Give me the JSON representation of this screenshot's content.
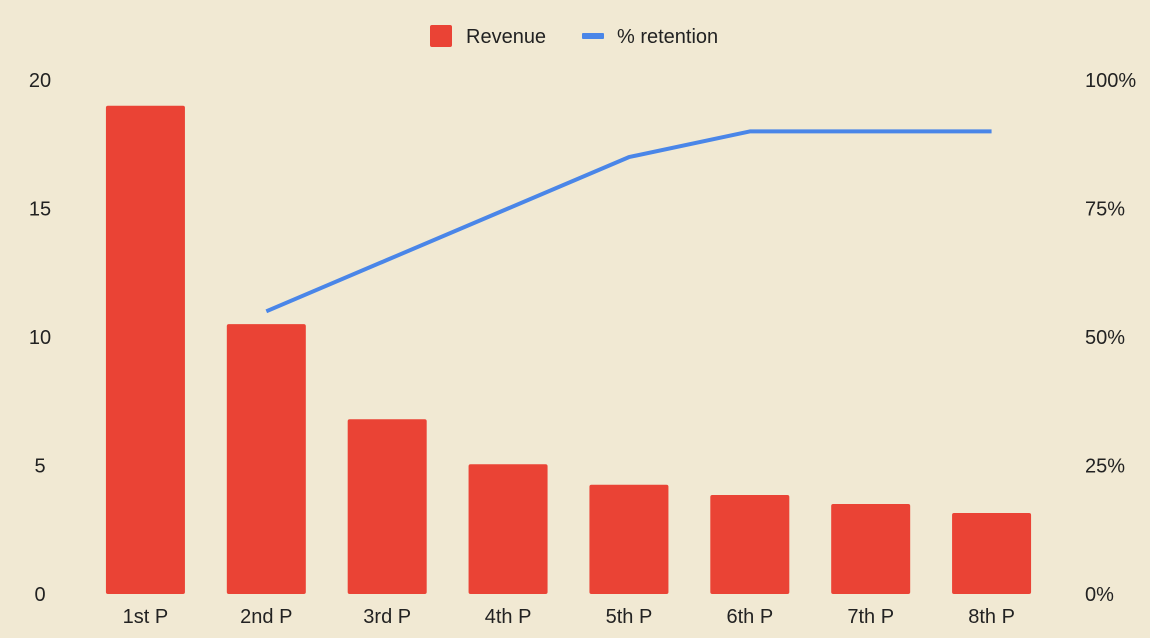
{
  "chart_data": {
    "type": "bar",
    "categories": [
      "1st P",
      "2nd P",
      "3rd P",
      "4th P",
      "5th P",
      "6th P",
      "7th P",
      "8th P"
    ],
    "series": [
      {
        "name": "Revenue",
        "type": "bar",
        "axis": "left",
        "color": "#EA4335",
        "values": [
          19,
          10.5,
          6.8,
          5.05,
          4.25,
          3.85,
          3.5,
          3.15
        ]
      },
      {
        "name": "% retention",
        "type": "line",
        "axis": "right",
        "color": "#4A86E8",
        "values": [
          null,
          55,
          65,
          75,
          85,
          90,
          90,
          90
        ]
      }
    ],
    "left_axis": {
      "ticks": [
        "0",
        "5",
        "10",
        "15",
        "20"
      ],
      "ylim": [
        0,
        20
      ]
    },
    "right_axis": {
      "ticks": [
        "0%",
        "25%",
        "50%",
        "75%",
        "100%"
      ],
      "ylim": [
        0,
        100
      ]
    },
    "grid": false,
    "legend_position": "top-center",
    "background": "#F1E9D3"
  }
}
